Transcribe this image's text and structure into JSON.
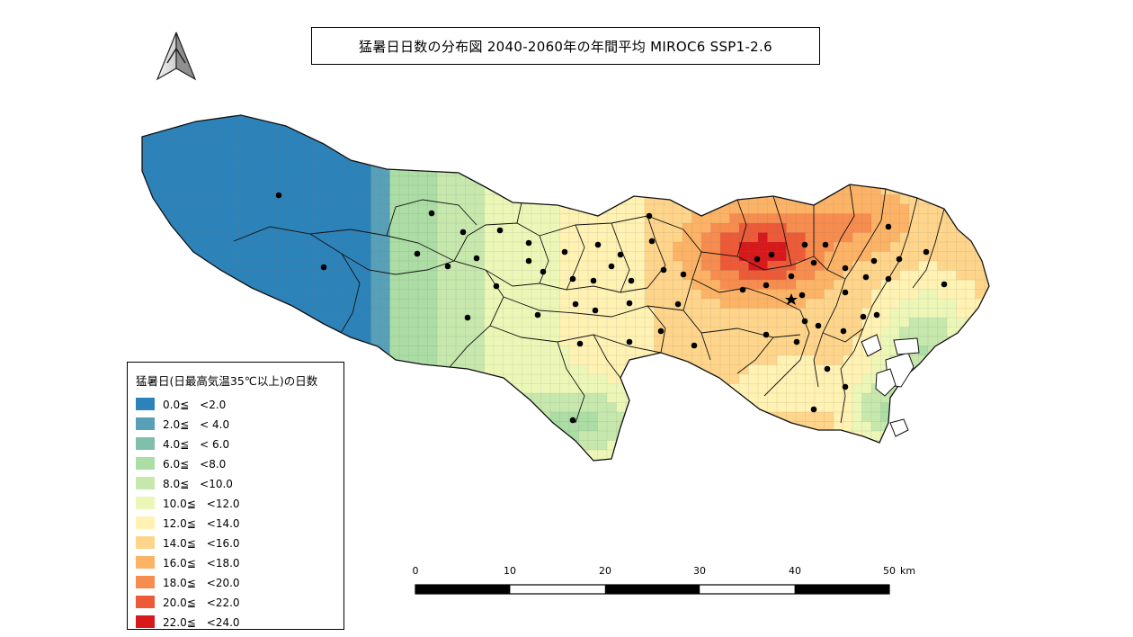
{
  "title": "猛暑日日数の分布図  2040-2060年の年間平均  MIROC6  SSP1-2.6",
  "legend": {
    "title": "猛暑日(日最高気温35℃以上)の日数",
    "items": [
      {
        "label": "0.0≦　<2.0",
        "color": "#2b83ba"
      },
      {
        "label": "2.0≦　< 4.0",
        "color": "#57a0b8"
      },
      {
        "label": "4.0≦　< 6.0",
        "color": "#80bfab"
      },
      {
        "label": "6.0≦　<8.0",
        "color": "#abdda4"
      },
      {
        "label": "8.0≦　<10.0",
        "color": "#c7e8ad"
      },
      {
        "label": "10.0≦　<12.0",
        "color": "#ecf7b7"
      },
      {
        "label": "12.0≦　<14.0",
        "color": "#fff2b3"
      },
      {
        "label": "14.0≦　<16.0",
        "color": "#fed58b"
      },
      {
        "label": "16.0≦　<18.0",
        "color": "#fdb366"
      },
      {
        "label": "18.0≦　<20.0",
        "color": "#f78c4f"
      },
      {
        "label": "20.0≦　<22.0",
        "color": "#ec5a37"
      },
      {
        "label": "22.0≦　<24.0",
        "color": "#d7191c"
      }
    ]
  },
  "scale_bar": {
    "ticks": [
      "0",
      "10",
      "20",
      "30",
      "40",
      "50"
    ],
    "unit": "km"
  },
  "north_arrow": "north-arrow-icon"
}
